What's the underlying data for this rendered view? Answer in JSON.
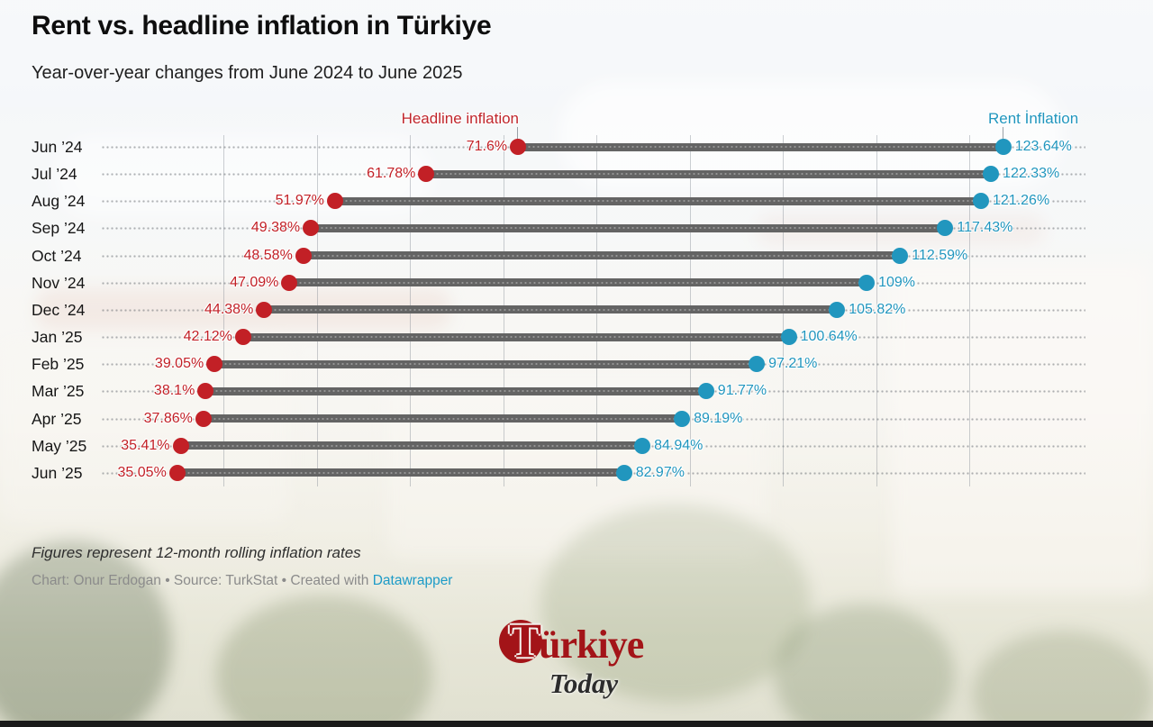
{
  "header": {
    "title": "Rent vs. headline inflation in Türkiye",
    "subtitle": "Year-over-year changes from June 2024 to June 2025"
  },
  "chart_data": {
    "type": "dumbbell",
    "title": "Rent vs. headline inflation in Türkiye",
    "subtitle": "Year-over-year changes from June 2024 to June 2025",
    "categories": [
      "Jun ’24",
      "Jul ’24",
      "Aug ’24",
      "Sep ’24",
      "Oct ’24",
      "Nov ’24",
      "Dec ’24",
      "Jan ’25",
      "Feb ’25",
      "Mar ’25",
      "Apr ’25",
      "May ’25",
      "Jun ’25"
    ],
    "series": [
      {
        "name": "Headline inflation",
        "color": "#c22026",
        "values": [
          71.6,
          61.78,
          51.97,
          49.38,
          48.58,
          47.09,
          44.38,
          42.12,
          39.05,
          38.1,
          37.86,
          35.41,
          35.05
        ]
      },
      {
        "name": "Rent İnflation",
        "color": "#2196be",
        "values": [
          123.64,
          122.33,
          121.26,
          117.43,
          112.59,
          109,
          105.82,
          100.64,
          97.21,
          91.77,
          89.19,
          84.94,
          82.97
        ]
      }
    ],
    "value_suffix": "%",
    "x_axis": {
      "min": 40,
      "max": 120,
      "gridline_step": 10,
      "grid": "on",
      "tick_labels": "none"
    },
    "legend_position": "top",
    "bar_color": "#646464"
  },
  "footer": {
    "note": "Figures represent 12-month rolling inflation rates",
    "credit_prefix": "Chart: Onur Erdogan • Source: TurkStat • Created with ",
    "credit_link": "Datawrapper"
  },
  "logo": {
    "full_name": "Türkiye",
    "initial": "T",
    "name_rest": "ürkiye",
    "tagline": "Today"
  },
  "colors": {
    "headline": "#c22026",
    "rent": "#2196be",
    "bar": "#646464",
    "grid": "#7c8691",
    "link": "#1d9bc7",
    "logo_red": "#a31418",
    "bottom_bar": "#1a1a1a"
  }
}
